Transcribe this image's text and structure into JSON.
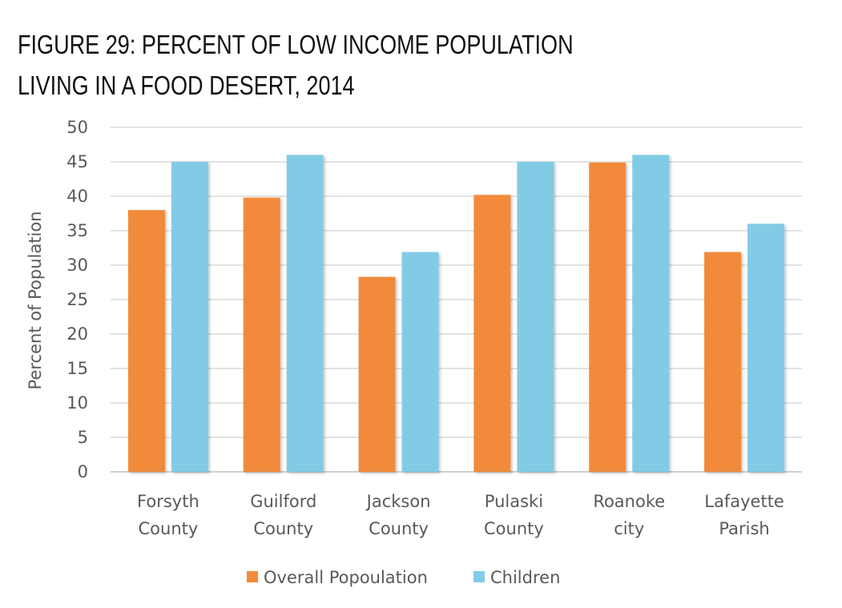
{
  "title_lines": [
    "FIGURE 29: PERCENT OF LOW INCOME POPULATION",
    "LIVING IN A FOOD DESERT, 2014"
  ],
  "chart_data": {
    "type": "bar",
    "title": "FIGURE 29: PERCENT OF LOW INCOME POPULATION LIVING IN A FOOD DESERT, 2014",
    "categories": [
      [
        "Forsyth",
        "County"
      ],
      [
        "Guilford",
        "County"
      ],
      [
        "Jackson",
        "County"
      ],
      [
        "Pulaski",
        "County"
      ],
      [
        "Roanoke",
        "city"
      ],
      [
        "Lafayette",
        "Parish"
      ]
    ],
    "series": [
      {
        "name": "Overall Popoulation",
        "color": "#F28A3A",
        "values": [
          38,
          39.8,
          28.3,
          40.2,
          44.9,
          31.9
        ]
      },
      {
        "name": "Children",
        "color": "#82CBE6",
        "values": [
          45,
          46,
          31.9,
          45,
          46,
          36
        ]
      }
    ],
    "xlabel": "",
    "ylabel": "Percent of Population",
    "ylim": [
      0,
      50
    ],
    "yticks": [
      0,
      5,
      10,
      15,
      20,
      25,
      30,
      35,
      40,
      45,
      50
    ],
    "grid": true,
    "legend_position": "bottom-center"
  }
}
